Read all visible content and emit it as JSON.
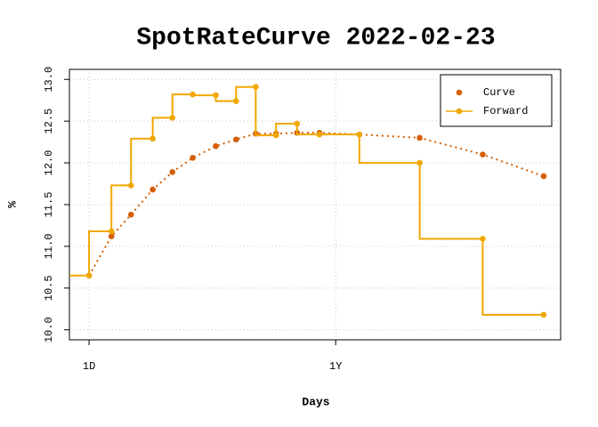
{
  "chart_data": {
    "type": "line",
    "title": "SpotRateCurve 2022-02-23",
    "x_label": "Days",
    "y_label": "%",
    "x": [
      1,
      34,
      63,
      95,
      124,
      154,
      188,
      218,
      247,
      277,
      308,
      341,
      400,
      489,
      582,
      672
    ],
    "series": [
      {
        "name": "Curve",
        "color": "#d55e00",
        "values": [
          10.65,
          11.12,
          11.38,
          11.68,
          11.89,
          12.06,
          12.2,
          12.28,
          12.35,
          12.35,
          12.36,
          12.36,
          12.34,
          12.3,
          12.1,
          11.84
        ]
      },
      {
        "name": "Forward",
        "color": "#f0a800",
        "values": [
          10.65,
          11.18,
          11.73,
          12.29,
          12.54,
          12.82,
          12.81,
          12.74,
          12.91,
          12.33,
          12.47,
          12.34,
          12.34,
          12.0,
          11.09,
          10.18
        ]
      }
    ],
    "xlim": [
      -28,
      697
    ],
    "xticks": [
      {
        "value": 1,
        "label": "1D"
      },
      {
        "value": 365,
        "label": "1Y"
      }
    ],
    "ylim": [
      9.88,
      13.12
    ],
    "yticks": [
      {
        "value": 10,
        "label": "10.0"
      },
      {
        "value": 10.5,
        "label": "10.5"
      },
      {
        "value": 11,
        "label": "11.0"
      },
      {
        "value": 11.5,
        "label": "11.5"
      },
      {
        "value": 12,
        "label": "12.0"
      },
      {
        "value": 12.5,
        "label": "12.5"
      },
      {
        "value": 13,
        "label": "13.0"
      }
    ],
    "grid": true,
    "legend": "top-right"
  }
}
